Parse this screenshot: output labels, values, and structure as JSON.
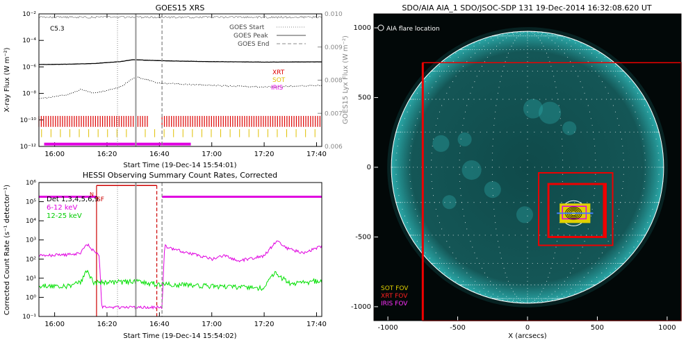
{
  "chart_data": [
    {
      "type": "line",
      "title": "GOES15 XRS",
      "xlabel": "Start Time (19-Dec-14 15:54:01)",
      "ylabel": "X-ray Flux (W m⁻²)",
      "y2label": "GOES15 Lyx Flux (W m⁻²)",
      "xlim": [
        "15:54",
        "17:42"
      ],
      "x_ticks": [
        "16:00",
        "16:20",
        "16:40",
        "17:00",
        "17:20",
        "17:40"
      ],
      "ylim": [
        1e-12,
        0.01
      ],
      "y_scale": "log",
      "y_ticks": [
        "10⁻¹²",
        "10⁻¹⁰",
        "10⁻⁸",
        "10⁻⁶",
        "10⁻⁴",
        "10⁻²"
      ],
      "y2lim": [
        0.006,
        0.01
      ],
      "y2_ticks": [
        "0.006",
        "0.007",
        "0.008",
        "0.009",
        "0.010"
      ],
      "class_label": "C5.3",
      "legend": [
        {
          "label": "GOES Start",
          "style": "dotted"
        },
        {
          "label": "GOES Peak",
          "style": "solid"
        },
        {
          "label": "GOES End",
          "style": "dashed"
        }
      ],
      "instrument_legend": [
        {
          "label": "XRT",
          "color": "#dd0000"
        },
        {
          "label": "SOT",
          "color": "#e0c000"
        },
        {
          "label": "IRIS",
          "color": "#e000e0"
        }
      ],
      "event_lines": {
        "start": "16:24",
        "peak": "16:31",
        "end": "16:41"
      },
      "series": [
        {
          "id": "long",
          "x": [
            "15:54",
            "16:05",
            "16:15",
            "16:25",
            "16:30",
            "16:35",
            "16:45",
            "17:00",
            "17:20",
            "17:40",
            "17:42"
          ],
          "y": [
            1.5e-06,
            1.6e-06,
            1.8e-06,
            2.5e-06,
            3.5e-06,
            3.2e-06,
            2.8e-06,
            2.5e-06,
            2.3e-06,
            2.4e-06,
            2.4e-06
          ]
        },
        {
          "id": "short",
          "x": [
            "15:54",
            "16:05",
            "16:10",
            "16:15",
            "16:25",
            "16:31",
            "16:40",
            "17:00",
            "17:20",
            "17:40",
            "17:42"
          ],
          "y": [
            4e-09,
            8e-09,
            2e-08,
            1e-08,
            3e-08,
            1.8e-07,
            6e-08,
            4e-08,
            3e-08,
            4e-08,
            4e-08
          ]
        },
        {
          "id": "lya",
          "x": [
            "15:54",
            "17:42"
          ],
          "y2": [
            0.0099,
            0.0099
          ]
        }
      ],
      "xrt_coverage": [
        [
          "15:54",
          "16:36"
        ],
        [
          "16:41",
          "17:42"
        ]
      ],
      "iris_coverage": [
        [
          "15:56",
          "16:52"
        ]
      ]
    },
    {
      "type": "line",
      "title": "HESSI Observing Summary Count Rates, Corrected",
      "xlabel": "Start Time (19-Dec-14 15:54:02)",
      "ylabel": "Corrected Count Rate (s⁻¹ detector⁻¹)",
      "xlim": [
        "15:54",
        "17:42"
      ],
      "x_ticks": [
        "16:00",
        "16:20",
        "16:40",
        "17:00",
        "17:20",
        "17:40"
      ],
      "ylim": [
        0.1,
        1000000.0
      ],
      "y_scale": "log",
      "y_ticks": [
        "10⁻¹",
        "10⁰",
        "10¹",
        "10²",
        "10³",
        "10⁴",
        "10⁵",
        "10⁶"
      ],
      "detector_label": "Det 1,3,4,5,6,9",
      "flag_labels": [
        "N",
        "SF"
      ],
      "series": [
        {
          "name": "6-12 keV",
          "color": "#e000e0",
          "x": [
            "15:54",
            "16:05",
            "16:10",
            "16:12",
            "16:15",
            "16:17",
            "16:18",
            "16:24",
            "16:30",
            "16:41",
            "16:42",
            "16:45",
            "17:00",
            "17:05",
            "17:10",
            "17:20",
            "17:25",
            "17:28",
            "17:35",
            "17:42"
          ],
          "y": [
            150,
            170,
            200,
            700,
            250,
            150,
            0.3,
            0.3,
            0.3,
            0.3,
            500,
            350,
            100,
            150,
            80,
            150,
            1000,
            400,
            200,
            500
          ]
        },
        {
          "name": "12-25 keV",
          "color": "#00e000",
          "x": [
            "15:54",
            "16:05",
            "16:10",
            "16:12",
            "16:15",
            "16:20",
            "16:30",
            "16:40",
            "17:00",
            "17:20",
            "17:24",
            "17:30",
            "17:42"
          ],
          "y": [
            4,
            4,
            6,
            30,
            6,
            6,
            7,
            5,
            4,
            3,
            20,
            5,
            8
          ]
        }
      ],
      "att_state": [
        [
          "15:54",
          "16:16",
          180000
        ],
        [
          "16:16",
          "16:39",
          700000
        ],
        [
          "16:41",
          "17:42",
          180000
        ]
      ],
      "event_lines": {
        "start": "16:24",
        "peak": "16:31",
        "end": "16:41"
      }
    },
    {
      "type": "image",
      "title": "SDO/AIA AIA_1 SDO/JSOC-SDP 131 19-Dec-2014 16:32:08.620 UT",
      "xlabel": "X (arcsecs)",
      "ylabel": "Y (arcsecs)",
      "xlim": [
        -1100,
        1100
      ],
      "ylim": [
        -1100,
        1100
      ],
      "x_ticks": [
        "-1000",
        "-500",
        "0",
        "500",
        "1000"
      ],
      "y_ticks": [
        "-1000",
        "-500",
        "0",
        "500",
        "1000"
      ],
      "marker_legend": "AIA flare location",
      "fov_legend": [
        {
          "label": "SOT FOV",
          "color": "#e0d000"
        },
        {
          "label": "XRT FOV",
          "color": "#dd0000"
        },
        {
          "label": "IRIS FOV",
          "color": "#e000e0"
        }
      ],
      "disk_radius": 975,
      "flare_center": [
        330,
        -330
      ],
      "xrt_fov_large": [
        -750,
        -1100,
        1100,
        750
      ],
      "xrt_fov_mid": [
        80,
        -560,
        610,
        -40
      ],
      "xrt_fov_small": [
        150,
        -500,
        560,
        -120
      ],
      "sot_fov": [
        230,
        -400,
        450,
        -260
      ],
      "iris_fov": [
        250,
        -370,
        420,
        -280
      ]
    }
  ]
}
